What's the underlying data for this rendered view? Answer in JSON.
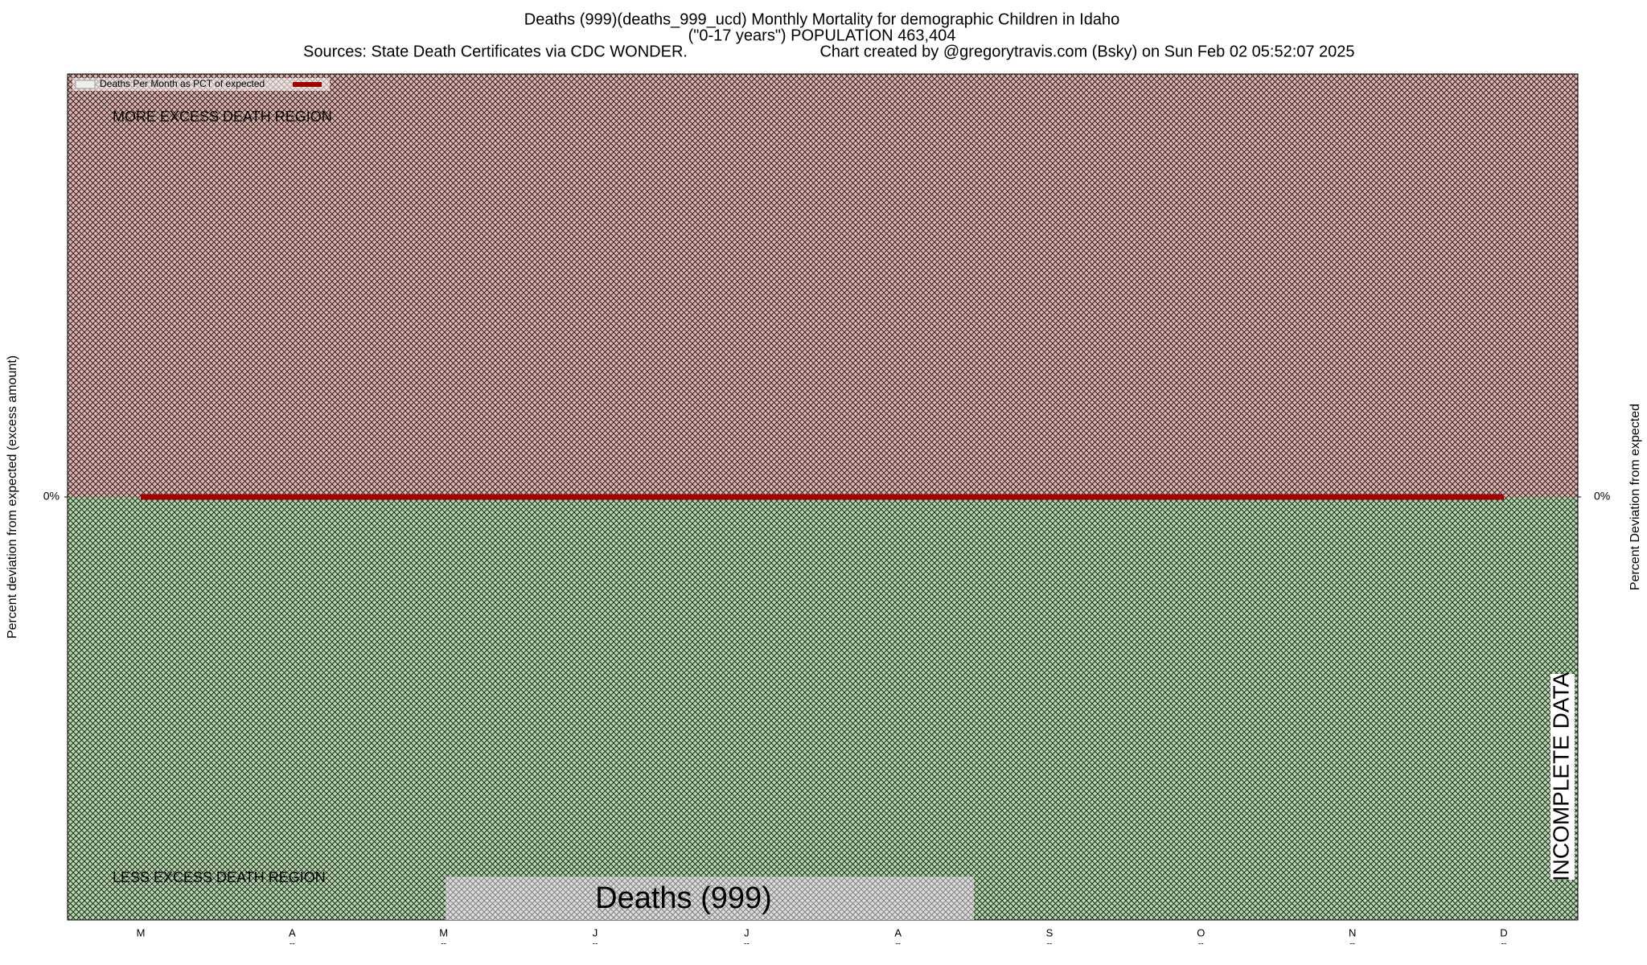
{
  "chart_data": {
    "type": "line",
    "title": "Deaths (999)(deaths_999_ucd) Monthly Mortality for demographic Children in Idaho",
    "subtitle": "(\"0-17 years\") POPULATION 463,404",
    "source": "Sources: State Death Certificates via CDC WONDER.",
    "credit": "Chart created by @gregorytravis.com (Bsky) on Sun Feb 02 05:52:07 2025",
    "ylabel": "Percent deviation from expected (excess amount)",
    "y2label": "Percent Deviation from expected",
    "categories": [
      "M",
      "A",
      "M",
      "J",
      "J",
      "A",
      "S",
      "O",
      "N",
      "D"
    ],
    "category_sublabels": [
      null,
      "--",
      "--",
      "--",
      "--",
      "--",
      "--",
      "--",
      "--",
      "--"
    ],
    "series": [
      {
        "name": "Deaths Per Month as PCT of expected",
        "color": "#a00000",
        "values": [
          0,
          0,
          0,
          0,
          0,
          0,
          0,
          0,
          0,
          0
        ]
      }
    ],
    "ylim": [
      -100,
      100
    ],
    "yticks": [
      {
        "value": 0,
        "label": "0%"
      }
    ],
    "y2lim": [
      -100,
      100
    ],
    "y2ticks": [
      {
        "value": 0,
        "label": "0%"
      }
    ],
    "legend": "upper left",
    "upper_region_label": "MORE EXCESS DEATH REGION",
    "lower_region_label": "LESS EXCESS DEATH REGION",
    "upper_region_color": "#e8b4b0",
    "lower_region_color": "#b4dcac",
    "center_label": "Deaths (999)",
    "side_label": "INCOMPLETE DATA"
  }
}
